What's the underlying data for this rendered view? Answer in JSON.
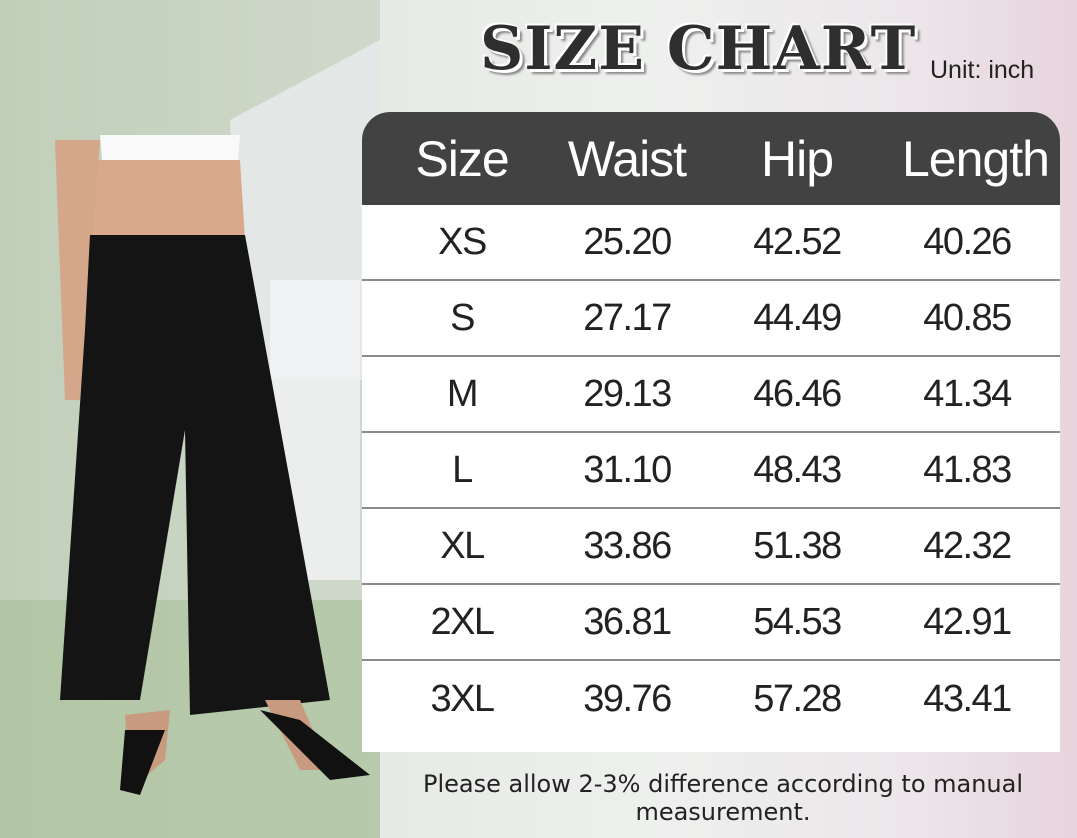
{
  "title": "SIZE CHART",
  "unit": "Unit: inch",
  "table": {
    "headers": [
      "Size",
      "Waist",
      "Hip",
      "Length"
    ],
    "rows": [
      [
        "XS",
        "25.20",
        "42.52",
        "40.26"
      ],
      [
        "S",
        "27.17",
        "44.49",
        "40.85"
      ],
      [
        "M",
        "29.13",
        "46.46",
        "41.34"
      ],
      [
        "L",
        "31.10",
        "48.43",
        "41.83"
      ],
      [
        "XL",
        "33.86",
        "51.38",
        "42.32"
      ],
      [
        "2XL",
        "36.81",
        "54.53",
        "42.91"
      ],
      [
        "3XL",
        "39.76",
        "57.28",
        "43.41"
      ]
    ]
  },
  "note": "Please allow 2-3% difference according to manual measurement.",
  "colors": {
    "header_bg": "#424242",
    "pants": "#141414"
  }
}
